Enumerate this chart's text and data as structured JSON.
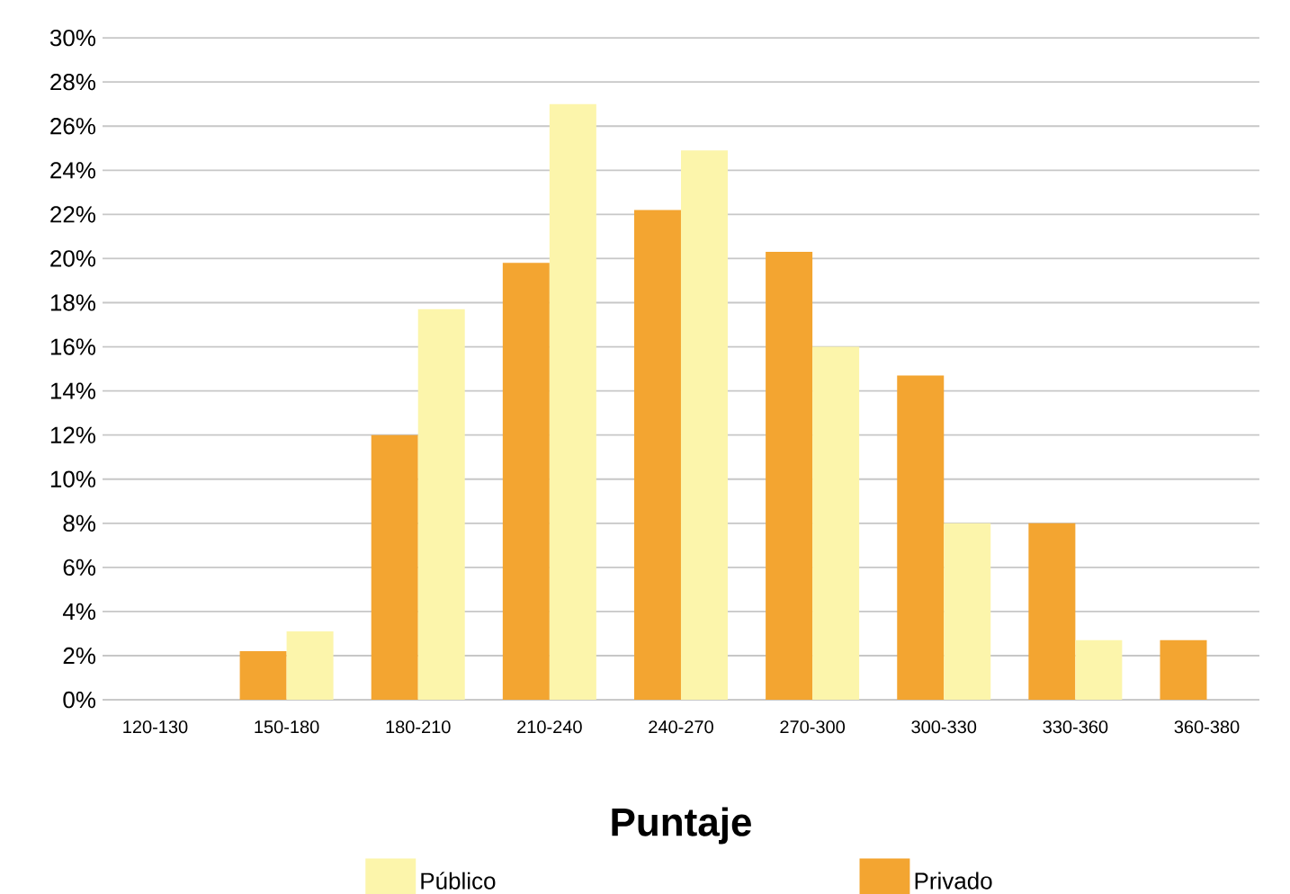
{
  "chart_data": {
    "type": "bar",
    "xlabel": "Puntaje",
    "categories": [
      "120-130",
      "150-180",
      "180-210",
      "210-240",
      "240-270",
      "270-300",
      "300-330",
      "330-360",
      "360-380"
    ],
    "series": [
      {
        "name": "Privado",
        "color": "#f3a531",
        "values": [
          0,
          2.2,
          12.0,
          19.8,
          22.2,
          20.3,
          14.7,
          8.0,
          2.7
        ]
      },
      {
        "name": "Público",
        "color": "#fcf5ab",
        "values": [
          0,
          3.1,
          17.7,
          27.0,
          24.9,
          16.0,
          8.0,
          2.7,
          0
        ]
      }
    ],
    "ylim": [
      0,
      30
    ],
    "yticks": [
      {
        "value": 0,
        "label": "0%"
      },
      {
        "value": 2,
        "label": "2%"
      },
      {
        "value": 4,
        "label": "4%"
      },
      {
        "value": 6,
        "label": "6%"
      },
      {
        "value": 8,
        "label": "8%"
      },
      {
        "value": 10,
        "label": "10%"
      },
      {
        "value": 12,
        "label": "12%"
      },
      {
        "value": 14,
        "label": "14%"
      },
      {
        "value": 16,
        "label": "16%"
      },
      {
        "value": 18,
        "label": "18%"
      },
      {
        "value": 20,
        "label": "20%"
      },
      {
        "value": 22,
        "label": "22%"
      },
      {
        "value": 24,
        "label": "24%"
      },
      {
        "value": 26,
        "label": "26%"
      },
      {
        "value": 28,
        "label": "28%"
      },
      {
        "value": 30,
        "label": "30%"
      }
    ],
    "grid": "y",
    "legend": "bottom"
  }
}
